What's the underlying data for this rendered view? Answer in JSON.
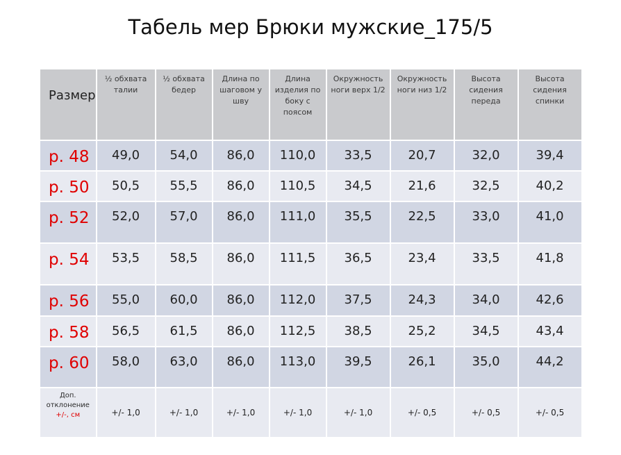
{
  "title": "Табель мер Брюки мужские_175/5",
  "header": {
    "size_label": "Размер",
    "columns": [
      "½ обхвата талии",
      "½ обхвата бедер",
      "Длина по шаговом у шву",
      "Длина изделия по боку с поясом",
      "Окружность ноги верх 1/2",
      "Окружность ноги низ 1/2",
      "Высота сидения переда",
      "Высота сидения спинки"
    ]
  },
  "rows": [
    {
      "size": "р. 48",
      "values": [
        "49,0",
        "54,0",
        "86,0",
        "110,0",
        "33,5",
        "20,7",
        "32,0",
        "39,4"
      ]
    },
    {
      "size": "р. 50",
      "values": [
        "50,5",
        "55,5",
        "86,0",
        "110,5",
        "34,5",
        "21,6",
        "32,5",
        "40,2"
      ]
    },
    {
      "size": "р. 52",
      "values": [
        "52,0",
        "57,0",
        "86,0",
        "111,0",
        "35,5",
        "22,5",
        "33,0",
        "41,0"
      ]
    },
    {
      "size": "р. 54",
      "values": [
        "53,5",
        "58,5",
        "86,0",
        "111,5",
        "36,5",
        "23,4",
        "33,5",
        "41,8"
      ]
    },
    {
      "size": "р. 56",
      "values": [
        "55,0",
        "60,0",
        "86,0",
        "112,0",
        "37,5",
        "24,3",
        "34,0",
        "42,6"
      ]
    },
    {
      "size": "р. 58",
      "values": [
        "56,5",
        "61,5",
        "86,0",
        "112,5",
        "38,5",
        "25,2",
        "34,5",
        "43,4"
      ]
    },
    {
      "size": "р. 60",
      "values": [
        "58,0",
        "63,0",
        "86,0",
        "113,0",
        "39,5",
        "26,1",
        "35,0",
        "44,2"
      ]
    }
  ],
  "tolerance": {
    "label": "Доп. отклонение",
    "unit": "+/-, см",
    "values": [
      "+/- 1,0",
      "+/- 1,0",
      "+/- 1,0",
      "+/- 1,0",
      "+/- 1,0",
      "+/- 0,5",
      "+/- 0,5",
      "+/- 0,5"
    ]
  },
  "colors": {
    "header_bg": "#c9cacd",
    "row_dark_bg": "#d1d6e3",
    "row_light_bg": "#e8eaf1",
    "size_text": "#e00000"
  }
}
